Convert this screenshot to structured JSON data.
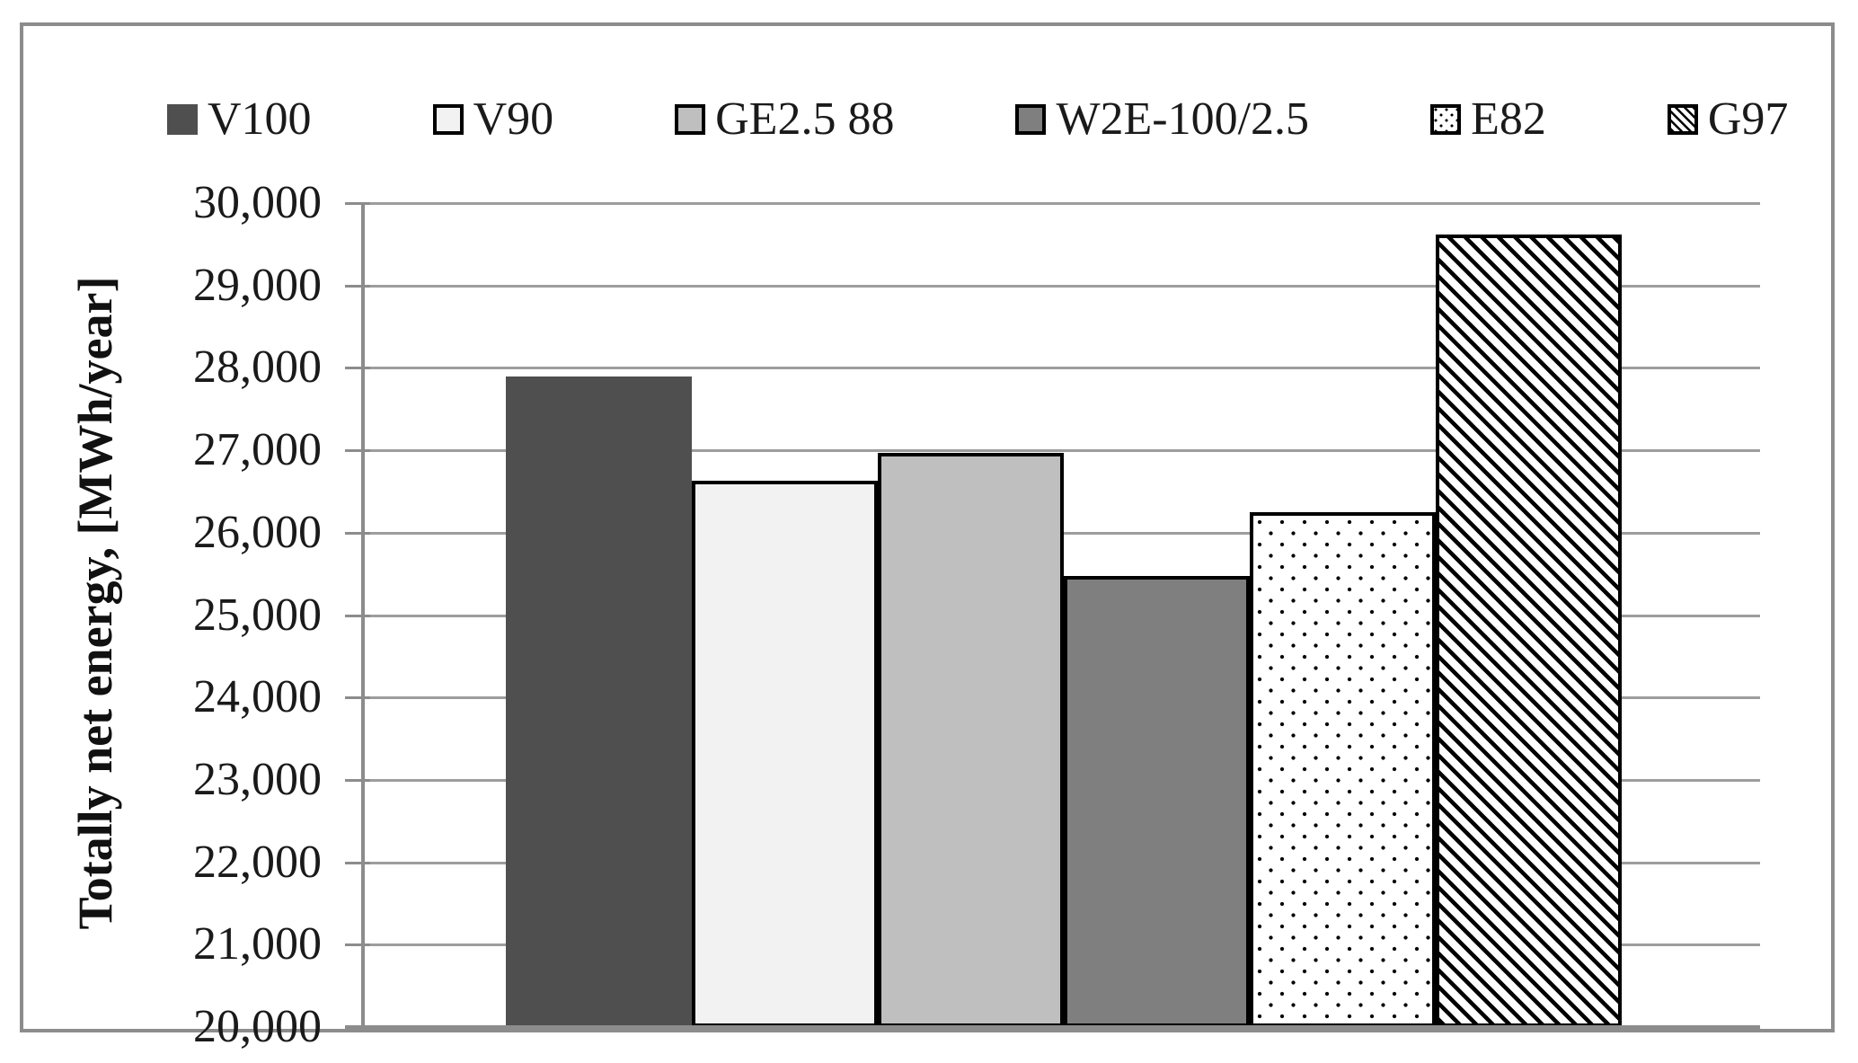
{
  "chart_data": {
    "type": "bar",
    "title": "",
    "xlabel": "",
    "ylabel": "Totally net energy, [MWh/year]",
    "ylim": [
      20000,
      30000
    ],
    "ytick_step": 1000,
    "y_tick_labels_top_to_bottom": [
      "30,000",
      "29,000",
      "28,000",
      "27,000",
      "26,000",
      "25,000",
      "24,000",
      "23,000",
      "22,000",
      "21,000",
      "20,000"
    ],
    "grid": true,
    "legend_position": "top",
    "categories": [
      ""
    ],
    "series": [
      {
        "name": "V100",
        "values": [
          27900
        ],
        "style": {
          "fill": "solid",
          "color": "#4f4f4f",
          "border": "none"
        }
      },
      {
        "name": "V90",
        "values": [
          26630
        ],
        "style": {
          "fill": "solid",
          "color": "#f2f2f2",
          "border": "#000000"
        }
      },
      {
        "name": "GE2.5 88",
        "values": [
          26970
        ],
        "style": {
          "fill": "solid",
          "color": "#bfbfbf",
          "border": "#000000"
        }
      },
      {
        "name": "W2E-100/2.5",
        "values": [
          25470
        ],
        "style": {
          "fill": "solid",
          "color": "#7f7f7f",
          "border": "#000000"
        }
      },
      {
        "name": "E82",
        "values": [
          26250
        ],
        "style": {
          "fill": "dots",
          "color": "#ffffff",
          "pattern_color": "#000000",
          "border": "#000000"
        }
      },
      {
        "name": "G97",
        "values": [
          29620
        ],
        "style": {
          "fill": "diagonal-hatch",
          "color": "#ffffff",
          "pattern_color": "#000000",
          "border": "#000000"
        }
      }
    ],
    "axis_color": "#8c8c8c",
    "gridline_color": "#9d9d9d"
  }
}
